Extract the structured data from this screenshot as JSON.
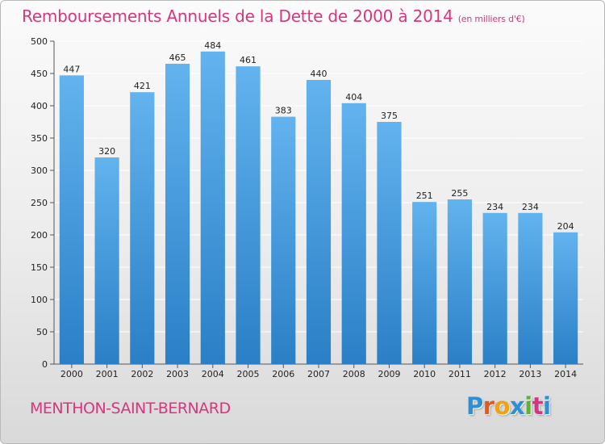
{
  "title": "Remboursements Annuels de la Dette de 2000 à 2014",
  "unit_note": "(en milliers d'€)",
  "commune": "MENTHON-SAINT-BERNARD",
  "logo": {
    "text": "Proxiti",
    "letter_colors": [
      "#2e8fd6",
      "#e05a1f",
      "#f0a11a",
      "#2e8fd6",
      "#5cb531",
      "#d6367f",
      "#2e8fd6"
    ]
  },
  "colors": {
    "bar_top": "#62b3ee",
    "bar_bottom": "#2a7fc6",
    "title": "#d6367f",
    "grid": "#ffffff"
  },
  "chart_data": {
    "type": "bar",
    "categories": [
      "2000",
      "2001",
      "2002",
      "2003",
      "2004",
      "2005",
      "2006",
      "2007",
      "2008",
      "2009",
      "2010",
      "2011",
      "2012",
      "2013",
      "2014"
    ],
    "values": [
      447,
      320,
      421,
      465,
      484,
      461,
      383,
      440,
      404,
      375,
      251,
      255,
      234,
      234,
      204
    ],
    "ylim": [
      0,
      500
    ],
    "yticks": [
      0,
      50,
      100,
      150,
      200,
      250,
      300,
      350,
      400,
      450,
      500
    ],
    "grid": true,
    "data_labels": true
  }
}
